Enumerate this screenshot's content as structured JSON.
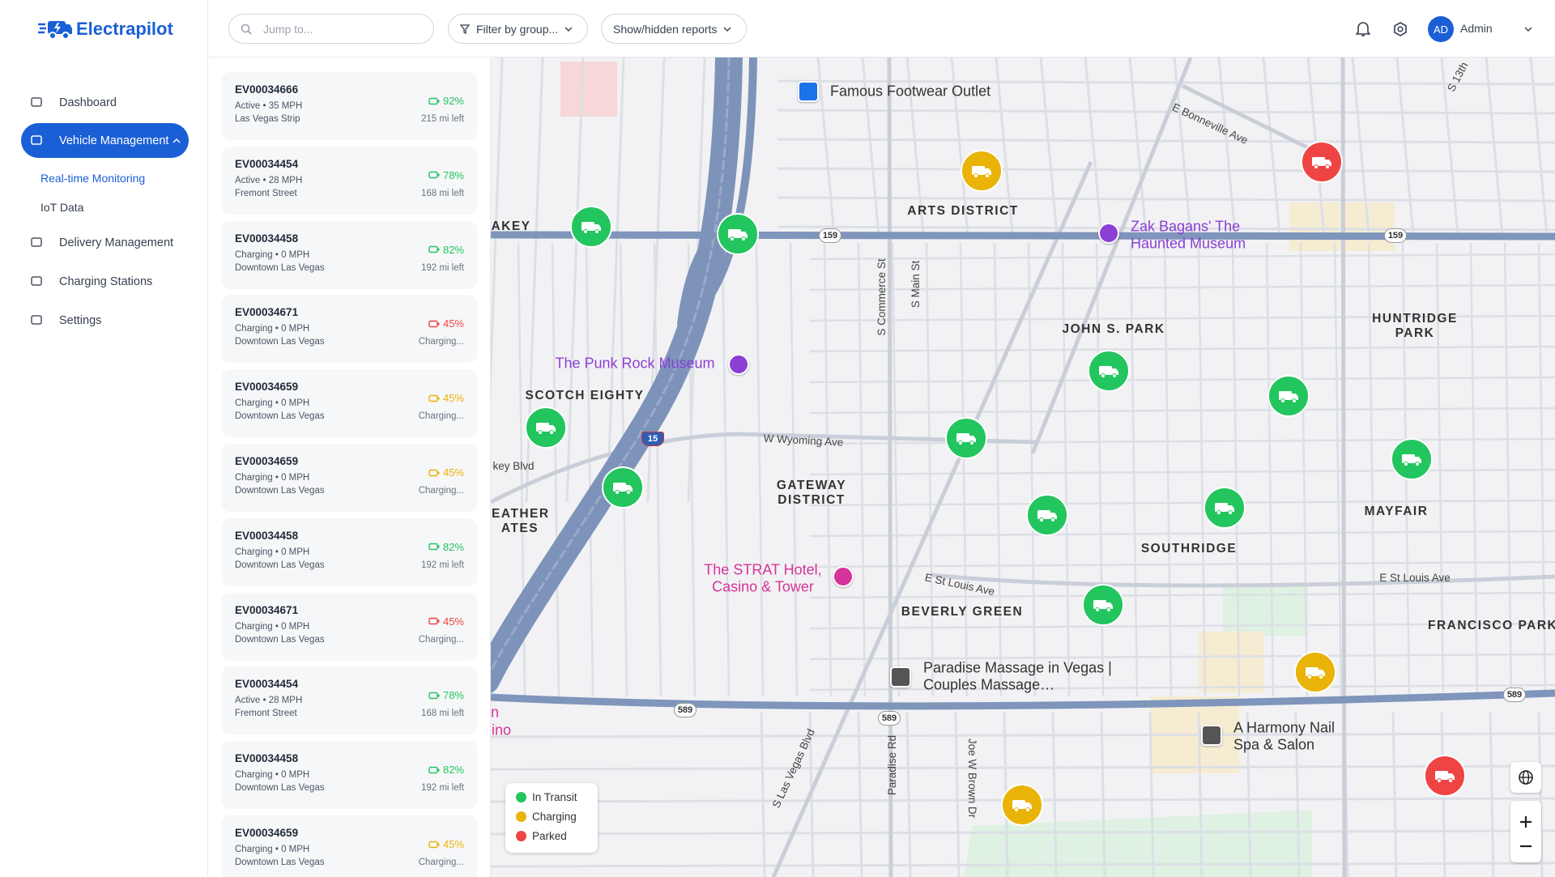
{
  "header": {
    "brand": "Electrapilot",
    "search_placeholder": "Jump to...",
    "filters": [
      "Filter by group...",
      "Show/hidden reports"
    ],
    "user": {
      "initials": "AD",
      "name": "Admin"
    }
  },
  "nav": [
    {
      "label": "Dashboard"
    },
    {
      "label": "Vehicle Management",
      "children": [
        "Real-time Monitoring",
        "IoT Data"
      ]
    },
    {
      "label": "Delivery Management"
    },
    {
      "label": "Charging Stations"
    },
    {
      "label": "Settings"
    }
  ],
  "vehicles": [
    {
      "id": "EV00034666",
      "status": "Active • 35 MPH",
      "location": "Las Vegas Strip",
      "battery": "92%",
      "range": "215 mi left",
      "color": "#22c55e"
    },
    {
      "id": "EV00034454",
      "status": "Active • 28 MPH",
      "location": "Fremont Street",
      "battery": "78%",
      "range": "168 mi left",
      "color": "#22c55e"
    },
    {
      "id": "EV00034458",
      "status": "Charging • 0 MPH",
      "location": "Downtown Las Vegas",
      "battery": "82%",
      "range": "192 mi left",
      "color": "#22c55e"
    },
    {
      "id": "EV00034671",
      "status": "Charging • 0 MPH",
      "location": "Downtown Las Vegas",
      "battery": "45%",
      "range": "Charging...",
      "color": "#ef4444"
    },
    {
      "id": "EV00034659",
      "status": "Charging • 0 MPH",
      "location": "Downtown Las Vegas",
      "battery": "45%",
      "range": "Charging...",
      "color": "#eab308"
    },
    {
      "id": "EV00034659",
      "status": "Charging • 0 MPH",
      "location": "Downtown Las Vegas",
      "battery": "45%",
      "range": "Charging...",
      "color": "#eab308"
    },
    {
      "id": "EV00034458",
      "status": "Charging • 0 MPH",
      "location": "Downtown Las Vegas",
      "battery": "82%",
      "range": "192 mi left",
      "color": "#22c55e"
    },
    {
      "id": "EV00034671",
      "status": "Charging • 0 MPH",
      "location": "Downtown Las Vegas",
      "battery": "45%",
      "range": "Charging...",
      "color": "#ef4444"
    },
    {
      "id": "EV00034454",
      "status": "Active • 28 MPH",
      "location": "Fremont Street",
      "battery": "78%",
      "range": "168 mi left",
      "color": "#22c55e"
    },
    {
      "id": "EV00034458",
      "status": "Charging • 0 MPH",
      "location": "Downtown Las Vegas",
      "battery": "82%",
      "range": "192 mi left",
      "color": "#22c55e"
    },
    {
      "id": "EV00034659",
      "status": "Charging • 0 MPH",
      "location": "Downtown Las Vegas",
      "battery": "45%",
      "range": "Charging...",
      "color": "#eab308"
    }
  ],
  "map": {
    "labels": [
      "Famous Footwear Outlet",
      "E Bonneville Ave",
      "S 13th",
      "ARTS DISTRICT",
      "Zak Bagans' The Haunted Museum",
      "AKEY",
      "JOHN S. PARK",
      "HUNTRIDGE PARK",
      "S Commerce St",
      "S Main St",
      "The Punk Rock Museum",
      "SCOTCH EIGHTY",
      "W Wyoming Ave",
      "key Blvd",
      "GATEWAY DISTRICT",
      "EATHER ATES",
      "MAYFAIR",
      "SOUTHRIDGE",
      "The STRAT Hotel, Casino & Tower",
      "E St Louis Ave",
      "E St Louis Ave",
      "BEVERLY GREEN",
      "FRANCISCO PARK",
      "Paradise Massage in Vegas | Couples Massage…",
      "A Harmony Nail Spa & Salon",
      "S Las Vegas Blvd",
      "Paradise Rd",
      "Joe W Brown Dr",
      "ino",
      "n"
    ],
    "shields": [
      "159",
      "159",
      "15",
      "589",
      "589",
      "589"
    ],
    "legend": [
      {
        "label": "In Transit",
        "color": "#22c55e"
      },
      {
        "label": "Charging",
        "color": "#eab308"
      },
      {
        "label": "Parked",
        "color": "#ef4444"
      }
    ]
  }
}
